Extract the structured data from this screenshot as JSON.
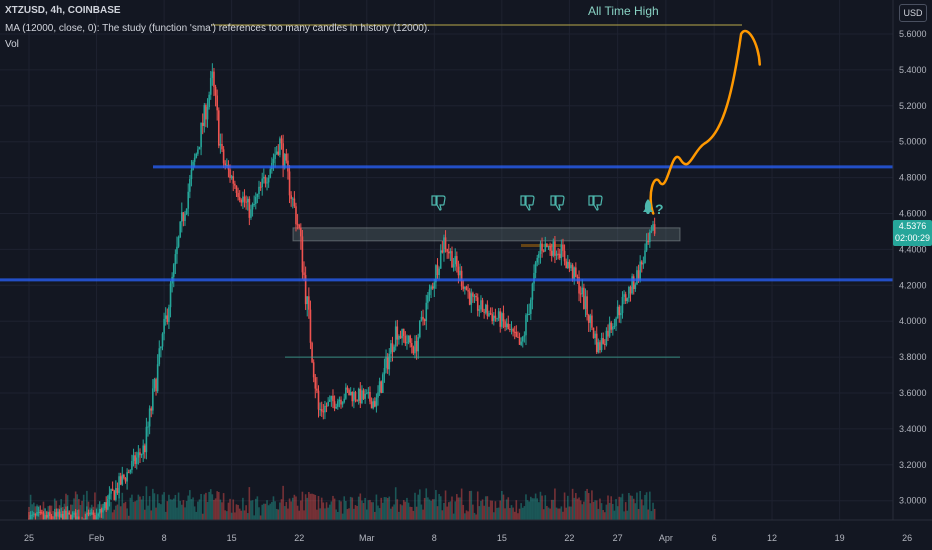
{
  "header": {
    "symbol_line": "XTZUSD, 4h, COINBASE",
    "study_notice": "MA (12000, close, 0): The study (function 'sma') references too many candles in history (12000).",
    "volume_label": "Vol"
  },
  "currency_button": "USD",
  "last_price": {
    "value": "4.5376",
    "countdown": "02:00:29"
  },
  "annotation_label": "All Time High",
  "colors": {
    "background": "#131722",
    "up": "#26a69a",
    "down": "#ef5350",
    "support_line": "#2962ff",
    "projection": "#ff9800",
    "ath_line": "#b8a84a"
  },
  "icons": [
    "thumbs-down-icon",
    "thumbs-down-icon",
    "thumbs-down-icon",
    "thumbs-down-icon",
    "rocket-icon",
    "question-mark-icon"
  ],
  "chart_data": {
    "type": "candlestick",
    "title": "",
    "xlabel": "",
    "ylabel": "",
    "ylim": [
      2.8,
      5.7
    ],
    "y_ticks": [
      "5.6000",
      "5.4000",
      "5.2000",
      "5.0000",
      "4.8000",
      "4.6000",
      "4.4000",
      "4.2000",
      "4.0000",
      "3.8000",
      "3.6000",
      "3.4000",
      "3.2000",
      "3.0000"
    ],
    "x_ticks": [
      "25",
      "Feb",
      "8",
      "15",
      "22",
      "Mar",
      "8",
      "15",
      "22",
      "27",
      "Apr",
      "6",
      "12",
      "19",
      "26"
    ],
    "grid": true,
    "approx_close_path": [
      {
        "x": "Jan 25",
        "y": 2.9
      },
      {
        "x": "Feb 1",
        "y": 2.9
      },
      {
        "x": "Feb 6",
        "y": 3.3
      },
      {
        "x": "Feb 10",
        "y": 4.6
      },
      {
        "x": "Feb 13",
        "y": 5.35
      },
      {
        "x": "Feb 14",
        "y": 4.9
      },
      {
        "x": "Feb 17",
        "y": 4.6
      },
      {
        "x": "Feb 20",
        "y": 5.0
      },
      {
        "x": "Feb 22",
        "y": 4.5
      },
      {
        "x": "Feb 24",
        "y": 3.5
      },
      {
        "x": "Feb 27",
        "y": 3.6
      },
      {
        "x": "Mar 2",
        "y": 3.55
      },
      {
        "x": "Mar 4",
        "y": 3.95
      },
      {
        "x": "Mar 6",
        "y": 3.85
      },
      {
        "x": "Mar 9",
        "y": 4.45
      },
      {
        "x": "Mar 12",
        "y": 4.1
      },
      {
        "x": "Mar 15",
        "y": 4.0
      },
      {
        "x": "Mar 17",
        "y": 3.85
      },
      {
        "x": "Mar 19",
        "y": 4.42
      },
      {
        "x": "Mar 21",
        "y": 4.4
      },
      {
        "x": "Mar 23",
        "y": 4.2
      },
      {
        "x": "Mar 25",
        "y": 3.85
      },
      {
        "x": "Mar 27",
        "y": 4.05
      },
      {
        "x": "Mar 29",
        "y": 4.25
      },
      {
        "x": "Mar 31",
        "y": 4.54
      }
    ],
    "horizontal_levels": [
      {
        "name": "All Time High",
        "y": 5.65
      },
      {
        "y": 4.86
      },
      {
        "y": 4.23
      },
      {
        "y": 3.8
      },
      {
        "y": 4.46
      }
    ],
    "projection": [
      {
        "x": "Mar 31",
        "y": 4.6
      },
      {
        "x": "Apr 1",
        "y": 4.77
      },
      {
        "x": "Apr 4",
        "y": 4.92
      },
      {
        "x": "Apr 7",
        "y": 5.15
      },
      {
        "x": "Apr 9",
        "y": 5.6
      },
      {
        "x": "Apr 10",
        "y": 5.42
      }
    ]
  }
}
